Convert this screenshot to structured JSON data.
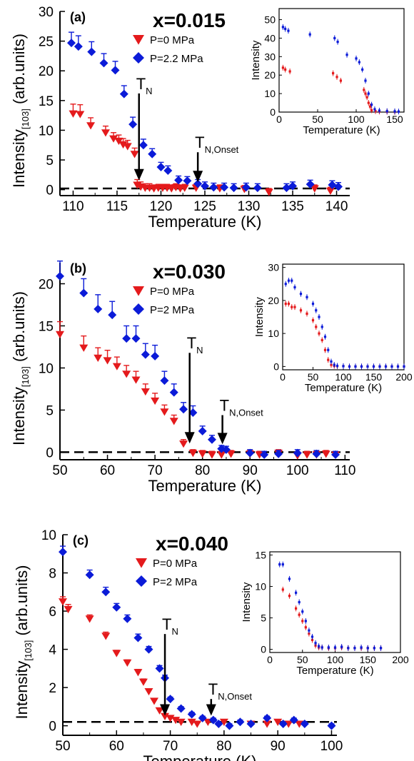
{
  "chart_data": [
    {
      "type": "scatter",
      "panel_label": "(a)",
      "composition_label": "x=0.015",
      "xlabel": "Temperature (K)",
      "ylabel_main": "Intensity",
      "ylabel_sub": "[103]",
      "ylabel_unit": "(arb.units)",
      "xlim": [
        108.5,
        141.5
      ],
      "ylim": [
        -1,
        30
      ],
      "xticks": [
        110,
        115,
        120,
        125,
        130,
        135,
        140
      ],
      "yticks": [
        0,
        5,
        10,
        15,
        20,
        25,
        30
      ],
      "legend_position": "top-center",
      "baseline": 0.2,
      "markers": [
        {
          "sym": "T",
          "sub": "N",
          "x": 117.5,
          "tip_y": 1.8,
          "top_y": 16.2
        },
        {
          "sym": "T",
          "sub": "N,Onset",
          "x": 124.2,
          "tip_y": 1.5,
          "top_y": 6.3
        }
      ],
      "series": [
        {
          "name": "P=0 MPa",
          "marker": "triangle-down",
          "color": "#e41a1c",
          "x": [
            110,
            110.8,
            112,
            113.7,
            114.6,
            115.2,
            115.7,
            116.2,
            117,
            117.3,
            117.7,
            118.2,
            118.7,
            119.2,
            119.7,
            120.2,
            120.7,
            121.2,
            121.7,
            122.2,
            122.7,
            124,
            126.7,
            129.5,
            132.3,
            137.5,
            139.3
          ],
          "y": [
            12.8,
            12.7,
            10.8,
            9.6,
            8.6,
            8.2,
            7.6,
            7.3,
            6,
            0.8,
            0.5,
            0.3,
            0.3,
            0.2,
            0.3,
            0.3,
            0.3,
            0.2,
            0.4,
            0.2,
            0.3,
            0.3,
            0.2,
            0.1,
            -0.4,
            0.2,
            -0.2
          ],
          "err": [
            1.6,
            1.6,
            1.3,
            1.1,
            1,
            1,
            1,
            1,
            1,
            0.9,
            0.8,
            0.7,
            0.7,
            0.6,
            0.6,
            0.6,
            0.6,
            0.6,
            0.6,
            0.6,
            0.6,
            0.6,
            0.6,
            0.6,
            0.6,
            0.6,
            0.6
          ]
        },
        {
          "name": "P=2.2 MPa",
          "marker": "diamond",
          "color": "#0b1bd8",
          "x": [
            109.8,
            110.6,
            112.1,
            113.5,
            114.8,
            115.8,
            116.8,
            118,
            119,
            120,
            120.8,
            122,
            123,
            124.2,
            125,
            126,
            127.2,
            128.3,
            129.7,
            131,
            134.3,
            135,
            137,
            139.5,
            140.2
          ],
          "y": [
            24.7,
            24.1,
            23.2,
            21.3,
            20.1,
            16.1,
            11,
            7.5,
            6,
            3.8,
            3.2,
            1.6,
            1.5,
            1,
            0.6,
            0.4,
            0.4,
            0.3,
            0.4,
            0.3,
            0.3,
            0.6,
            0.9,
            0.8,
            0.5
          ],
          "err": [
            1.8,
            1.8,
            1.7,
            1.6,
            1.5,
            1.4,
            1.2,
            1,
            0.9,
            0.8,
            0.8,
            0.7,
            0.7,
            0.7,
            0.7,
            0.7,
            0.7,
            0.7,
            0.7,
            0.7,
            0.7,
            0.7,
            0.7,
            0.7,
            0.7
          ]
        }
      ],
      "inset": {
        "xlabel": "Temperature (K)",
        "ylabel": "Intensity",
        "xlim": [
          0,
          162
        ],
        "ylim": [
          0,
          56
        ],
        "xticks": [
          0,
          50,
          100,
          150
        ],
        "yticks": [
          0,
          10,
          20,
          30,
          40,
          50
        ],
        "series": [
          {
            "color": "#e41a1c",
            "x": [
              5,
              8,
              14,
              70,
              75,
              80,
              110,
              112,
              114,
              116,
              118,
              120,
              125,
              130,
              140,
              150
            ],
            "y": [
              24,
              23,
              22,
              21,
              19,
              17,
              12,
              10,
              8,
              5,
              3,
              1,
              0.5,
              0.3,
              0.2,
              0.1
            ]
          },
          {
            "color": "#0b1bd8",
            "x": [
              5,
              8,
              12,
              40,
              72,
              76,
              88,
              100,
              104,
              108,
              112,
              116,
              120,
              124,
              130,
              140,
              150,
              155
            ],
            "y": [
              46,
              45,
              44,
              42,
              40,
              38,
              31,
              29,
              27,
              23,
              17,
              10,
              4,
              1.5,
              0.8,
              0.5,
              0.4,
              0.3
            ]
          }
        ]
      }
    },
    {
      "type": "scatter",
      "panel_label": "(b)",
      "composition_label": "x=0.030",
      "xlabel": "Temperature (K)",
      "ylabel_main": "Intensity",
      "ylabel_sub": "[103]",
      "ylabel_unit": "(arb.units)",
      "xlim": [
        50,
        111
      ],
      "ylim": [
        -0.9,
        22.5
      ],
      "xticks": [
        50,
        60,
        70,
        80,
        90,
        100,
        110
      ],
      "yticks": [
        0,
        5,
        10,
        15,
        20
      ],
      "legend_position": "top-center",
      "baseline": 0,
      "markers": [
        {
          "sym": "T",
          "sub": "N",
          "x": 77.3,
          "tip_y": 1.2,
          "top_y": 11.8
        },
        {
          "sym": "T",
          "sub": "N,Onset",
          "x": 84.2,
          "tip_y": 1.1,
          "top_y": 4.4
        }
      ],
      "series": [
        {
          "name": "P=0 MPa",
          "marker": "triangle-down",
          "color": "#e41a1c",
          "x": [
            50,
            55,
            58,
            60,
            62,
            64,
            66,
            68,
            70,
            72,
            74,
            76,
            78,
            80,
            82,
            84,
            86,
            90,
            92,
            96,
            100,
            102,
            104,
            106,
            108
          ],
          "y": [
            14,
            12.4,
            11.2,
            10.9,
            10.2,
            9.3,
            8.6,
            7.2,
            6.1,
            4.8,
            3.7,
            1,
            -0.1,
            -0.2,
            -0.3,
            -0.3,
            -0.2,
            -0.2,
            -0.3,
            -0.1,
            -0.4,
            -0.3,
            -0.3,
            -0.2,
            -0.3
          ],
          "err": [
            1.5,
            1.4,
            1.2,
            1.2,
            1.1,
            1,
            1,
            0.9,
            0.9,
            0.8,
            0.7,
            0.5,
            0.4,
            0.4,
            0.4,
            0.4,
            0.4,
            0.4,
            0.4,
            0.4,
            0.4,
            0.4,
            0.4,
            0.4,
            0.4
          ]
        },
        {
          "name": "P=2 MPa",
          "marker": "diamond",
          "color": "#0b1bd8",
          "x": [
            50,
            55,
            58,
            61,
            64,
            66,
            68,
            70,
            72,
            74,
            76,
            78,
            80,
            82,
            84,
            85,
            90,
            93,
            96,
            100,
            104,
            108
          ],
          "y": [
            20.9,
            18.9,
            17,
            16.3,
            13.5,
            13.5,
            11.6,
            11.4,
            8.5,
            7.1,
            5.1,
            4.7,
            2.5,
            1.5,
            0.4,
            0.3,
            -0.1,
            -0.3,
            -0.2,
            -0.1,
            -0.2,
            -0.3
          ],
          "err": [
            1.8,
            1.7,
            1.7,
            1.6,
            1.5,
            1.5,
            1.3,
            1.3,
            1.1,
            1,
            0.8,
            0.8,
            0.6,
            0.5,
            0.4,
            0.4,
            0.4,
            0.4,
            0.4,
            0.4,
            0.4,
            0.4
          ]
        }
      ],
      "inset": {
        "xlabel": "Temperature (K)",
        "ylabel": "Intensity",
        "xlim": [
          0,
          200
        ],
        "ylim": [
          -1,
          31
        ],
        "xticks": [
          0,
          50,
          100,
          150,
          200
        ],
        "yticks": [
          0,
          10,
          20,
          30
        ],
        "series": [
          {
            "color": "#e41a1c",
            "x": [
              5,
              10,
              15,
              20,
              30,
              40,
              50,
              55,
              60,
              65,
              70,
              75,
              80,
              85,
              90,
              100,
              110,
              120,
              130,
              140,
              150,
              160,
              170,
              180,
              190,
              200
            ],
            "y": [
              19,
              19,
              18,
              18,
              17,
              16,
              14,
              12,
              10,
              8,
              5,
              2,
              0.5,
              0.2,
              0.1,
              0.1,
              0,
              0,
              0,
              0,
              0,
              0,
              0,
              0,
              0,
              0
            ]
          },
          {
            "color": "#0b1bd8",
            "x": [
              5,
              10,
              15,
              20,
              30,
              40,
              50,
              55,
              60,
              65,
              70,
              75,
              80,
              85,
              90,
              100,
              110,
              120,
              130,
              140,
              150,
              160,
              170,
              180,
              190,
              200
            ],
            "y": [
              25,
              26,
              26,
              24,
              22,
              21,
              19,
              17,
              15,
              12,
              9,
              5,
              1.5,
              0.5,
              0.2,
              0.1,
              0,
              0,
              0,
              0,
              0,
              0,
              0,
              0,
              0,
              0
            ]
          }
        ]
      }
    },
    {
      "type": "scatter",
      "panel_label": "(c)",
      "composition_label": "x=0.040",
      "xlabel": "Temperature (K)",
      "ylabel_main": "Intensity",
      "ylabel_sub": "[103]",
      "ylabel_unit": "(arb.units)",
      "xlim": [
        50,
        101
      ],
      "ylim": [
        -0.5,
        10
      ],
      "xticks": [
        50,
        60,
        70,
        80,
        90,
        100
      ],
      "yticks": [
        0,
        2,
        4,
        6,
        8,
        10
      ],
      "legend_position": "top-center",
      "baseline": 0.2,
      "markers": [
        {
          "sym": "T",
          "sub": "N",
          "x": 69,
          "tip_y": 0.6,
          "top_y": 4.8
        },
        {
          "sym": "T",
          "sub": "N,Onset",
          "x": 77.6,
          "tip_y": 0.6,
          "top_y": 1.4
        }
      ],
      "series": [
        {
          "name": "P=0 MPa",
          "marker": "triangle-down",
          "color": "#e41a1c",
          "x": [
            50,
            51,
            55,
            58,
            60,
            62,
            64,
            65,
            66,
            67,
            68,
            69,
            70,
            71,
            72,
            74,
            75,
            77,
            80,
            85,
            88,
            90,
            92,
            94
          ],
          "y": [
            6.5,
            6.1,
            5.6,
            4.7,
            3.8,
            3.3,
            2.8,
            2.3,
            1.8,
            1.3,
            0.8,
            0.5,
            0.4,
            0.3,
            0.2,
            0.2,
            0.1,
            0.2,
            0.2,
            0.1,
            0.1,
            0.2,
            0.1,
            0.1
          ],
          "err": [
            0.25,
            0.25,
            0.2,
            0.2,
            0.15,
            0.15,
            0.15,
            0.15,
            0.1,
            0.1,
            0.1,
            0.1,
            0.1,
            0.1,
            0.1,
            0.1,
            0.1,
            0.1,
            0.1,
            0.1,
            0.1,
            0.1,
            0.1,
            0.1
          ]
        },
        {
          "name": "P=2 MPa",
          "marker": "diamond",
          "color": "#0b1bd8",
          "x": [
            50,
            55,
            58,
            60,
            62,
            64,
            66,
            68,
            69,
            70,
            72,
            74,
            76,
            78,
            79,
            81,
            83,
            85,
            88,
            91,
            93,
            95,
            100
          ],
          "y": [
            9.1,
            7.9,
            7,
            6.2,
            5.6,
            4.6,
            4,
            3,
            2.5,
            1.4,
            0.9,
            0.6,
            0.4,
            0.3,
            0.1,
            0,
            0.2,
            0.1,
            0.4,
            0.1,
            0.3,
            0.1,
            0
          ],
          "err": [
            0.3,
            0.25,
            0.25,
            0.2,
            0.2,
            0.2,
            0.15,
            0.15,
            0.15,
            0.1,
            0.1,
            0.1,
            0.1,
            0.1,
            0.1,
            0.1,
            0.1,
            0.1,
            0.1,
            0.1,
            0.1,
            0.1,
            0.1
          ]
        }
      ],
      "inset": {
        "xlabel": "Temperature (K)",
        "ylabel": "Intensity",
        "xlim": [
          0,
          200
        ],
        "ylim": [
          -0.5,
          15.5
        ],
        "xticks": [
          0,
          50,
          100,
          150,
          200
        ],
        "yticks": [
          0,
          5,
          10,
          15
        ],
        "series": [
          {
            "color": "#e41a1c",
            "x": [
              20,
              30,
              40,
              45,
              50,
              55,
              60,
              65,
              70,
              75,
              80,
              90,
              100,
              110,
              120,
              130,
              140,
              150,
              160,
              170
            ],
            "y": [
              9.5,
              8.5,
              6.5,
              5.5,
              4.5,
              3.5,
              2.5,
              1.5,
              0.6,
              0.3,
              0.3,
              0.2,
              0.2,
              0.3,
              0.2,
              0.2,
              0.2,
              0.2,
              0.2,
              0.2
            ]
          },
          {
            "color": "#0b1bd8",
            "x": [
              15,
              20,
              30,
              40,
              45,
              50,
              55,
              60,
              65,
              70,
              75,
              80,
              90,
              100,
              110,
              120,
              130,
              140,
              150,
              160,
              170
            ],
            "y": [
              13.5,
              13.5,
              11.2,
              9,
              7.5,
              6,
              4.5,
              3,
              2,
              1,
              0.5,
              0.3,
              0.3,
              0.3,
              0.4,
              0.2,
              0.2,
              0.3,
              0.2,
              0.2,
              0.2
            ]
          }
        ]
      }
    }
  ]
}
